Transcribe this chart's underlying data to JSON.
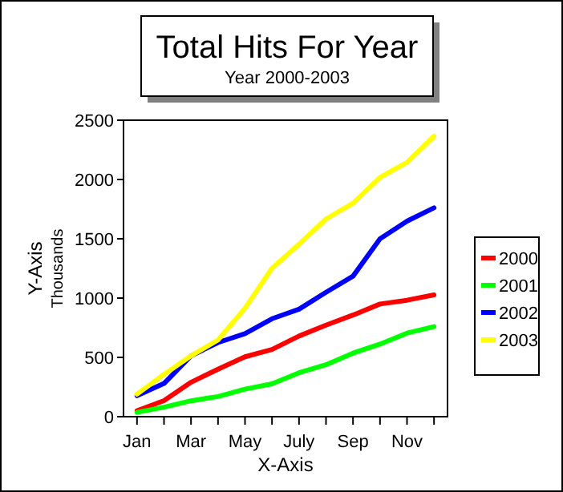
{
  "chart_data": {
    "type": "line",
    "title": "Total Hits For Year",
    "subtitle": "Year 2000-2003",
    "xlabel": "X-Axis",
    "ylabel": "Y-Axis",
    "annotations": [
      "Thousands"
    ],
    "categories": [
      "Jan",
      null,
      "Mar",
      null,
      "May",
      null,
      "July",
      null,
      "Sep",
      null,
      "Nov",
      null
    ],
    "ylim": [
      0,
      2500
    ],
    "yticks": [
      0,
      500,
      1000,
      1500,
      2000,
      2500
    ],
    "grid": false,
    "legend": "right",
    "marker": "none",
    "line_style": "solid",
    "series": [
      {
        "name": "2000",
        "color": "#ff0000",
        "values": [
          50,
          135,
          290,
          400,
          505,
          567,
          680,
          772,
          857,
          950,
          982,
          1027
        ]
      },
      {
        "name": "2001",
        "color": "#00ff00",
        "values": [
          36,
          80,
          134,
          170,
          232,
          277,
          370,
          438,
          536,
          612,
          705,
          759
        ]
      },
      {
        "name": "2002",
        "color": "#0000ff",
        "values": [
          178,
          280,
          513,
          625,
          700,
          826,
          906,
          1049,
          1185,
          1500,
          1649,
          1761
        ]
      },
      {
        "name": "2003",
        "color": "#ffff00",
        "values": [
          190,
          357,
          513,
          647,
          915,
          1252,
          1455,
          1667,
          1800,
          2018,
          2144,
          2365
        ]
      }
    ]
  }
}
